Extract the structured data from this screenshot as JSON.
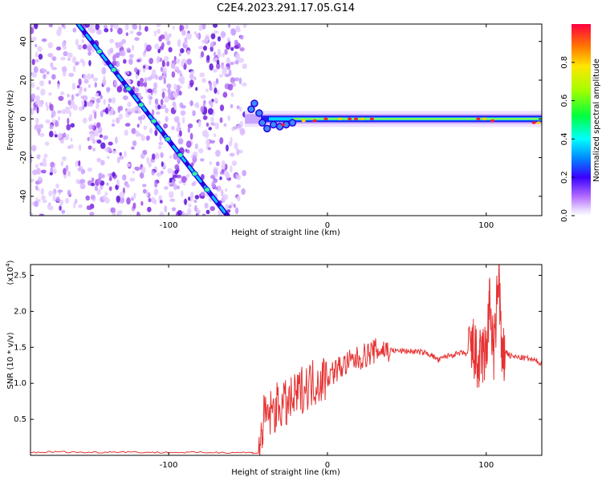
{
  "title": "C2E4.2023.291.17.05.G14",
  "chart_data": [
    {
      "type": "heatmap",
      "name": "spectrogram",
      "xlabel": "Height of straight line (km)",
      "ylabel": "Frequency (Hz)",
      "xlim": [
        -187,
        135
      ],
      "ylim": [
        -50,
        49
      ],
      "xticks": [
        -100,
        0,
        100
      ],
      "yticks": [
        -40,
        -20,
        0,
        20,
        40
      ],
      "grid": false,
      "features": {
        "noise_region_x": [
          -187,
          -52
        ],
        "diagonal_track": {
          "x": [
            -157,
            -63
          ],
          "y": [
            49,
            -50
          ]
        },
        "carrier_track": {
          "x": [
            -52,
            135
          ],
          "y": [
            0,
            0
          ]
        }
      },
      "colorbar": {
        "label": "Normalized spectral amplitude",
        "range": [
          0,
          1
        ],
        "ticks": [
          "0.0",
          "0.2",
          "0.4",
          "0.6",
          "0.8"
        ]
      }
    },
    {
      "type": "line",
      "name": "snr",
      "xlabel": "Height of straight line (km)",
      "ylabel": "SNR (10 * v/v)",
      "y_scale_label": "(x10",
      "y_scale_exp": "4",
      "xlim": [
        -187,
        135
      ],
      "ylim": [
        0,
        2.65
      ],
      "xticks": [
        -100,
        0,
        100
      ],
      "yticks": [
        "0.5",
        "1.0",
        "1.5",
        "2.0",
        "2.5"
      ],
      "grid": false,
      "line_color": "#e63232",
      "series": [
        {
          "x": [
            -187,
            -170,
            -150,
            -130,
            -110,
            -90,
            -70,
            -50,
            -43,
            -40,
            -35,
            -30,
            -25,
            -20,
            -15,
            -10,
            -5,
            0,
            5,
            10,
            15,
            20,
            25,
            30,
            35,
            40,
            45,
            50,
            55,
            60,
            65,
            70,
            75,
            80,
            85,
            90,
            92,
            95,
            97,
            100,
            102,
            105,
            108,
            110,
            112,
            115,
            120,
            125,
            130,
            135
          ],
          "y": [
            0.04,
            0.05,
            0.04,
            0.05,
            0.04,
            0.04,
            0.04,
            0.04,
            0.03,
            0.5,
            0.6,
            0.7,
            0.7,
            0.8,
            0.95,
            1.0,
            1.05,
            1.1,
            1.18,
            1.25,
            1.3,
            1.35,
            1.4,
            1.45,
            1.47,
            1.46,
            1.45,
            1.45,
            1.44,
            1.43,
            1.4,
            1.32,
            1.38,
            1.4,
            1.42,
            1.4,
            1.5,
            1.2,
            1.4,
            1.4,
            2.1,
            1.4,
            2.6,
            1.2,
            1.45,
            1.38,
            1.36,
            1.35,
            1.32,
            1.28
          ]
        }
      ]
    }
  ]
}
